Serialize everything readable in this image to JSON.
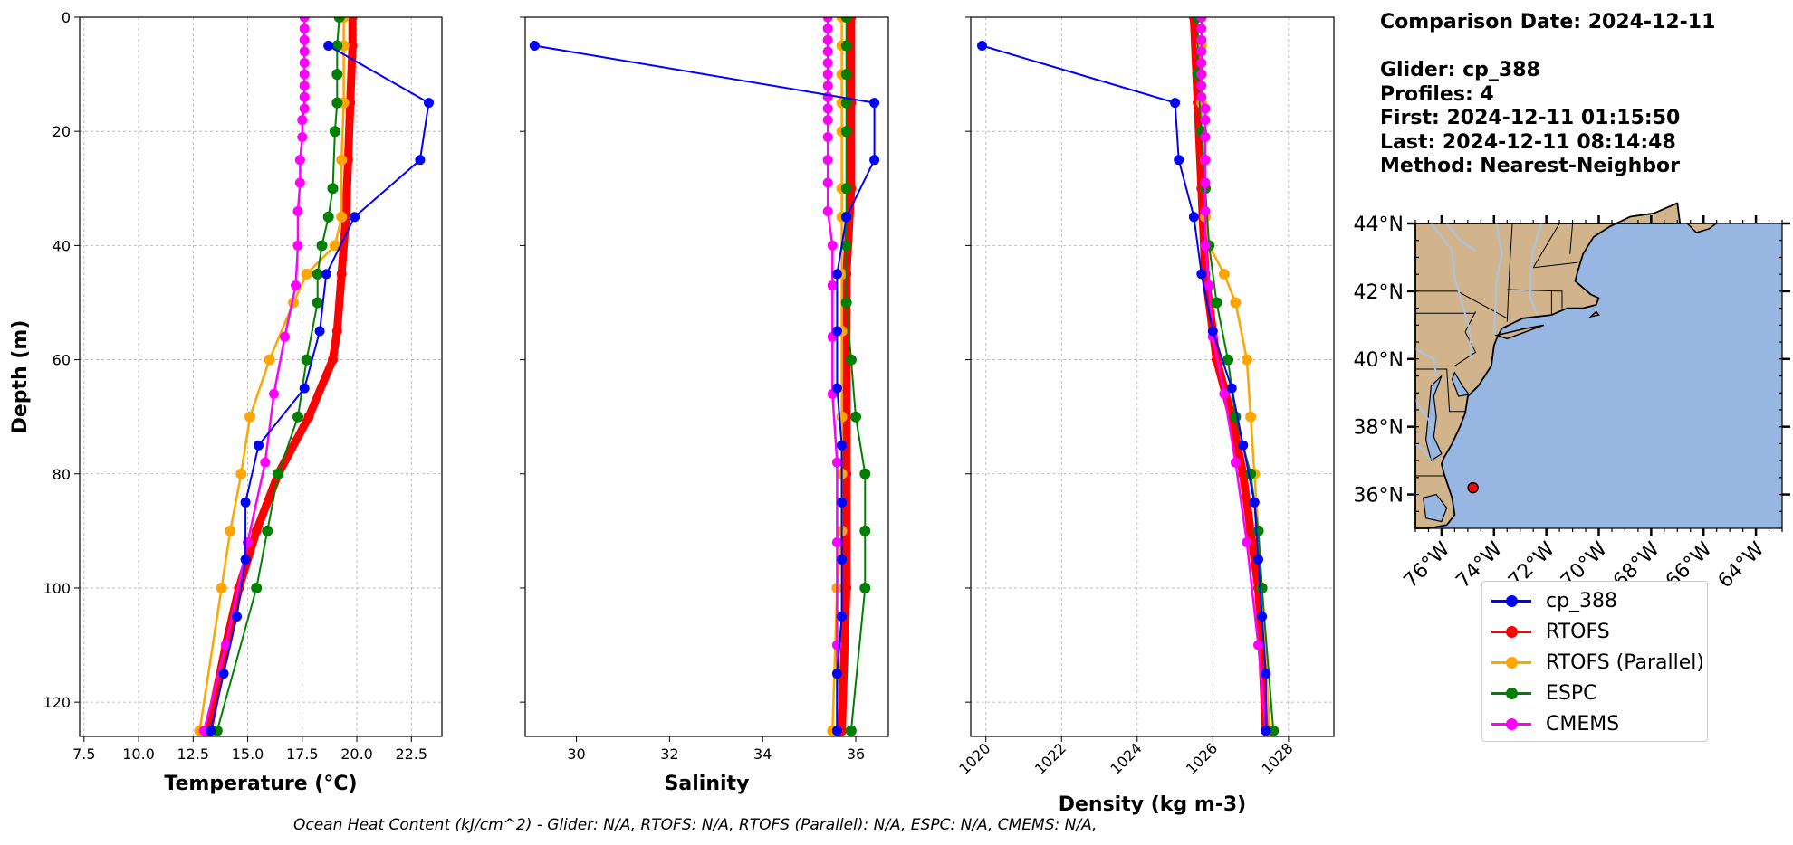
{
  "chart_data": [
    {
      "type": "line",
      "xlabel": "Temperature (°C)",
      "ylabel": "Depth (m)",
      "xlim": [
        7.3,
        23.9
      ],
      "ylim": [
        126,
        0
      ],
      "xticks": [
        7.5,
        10.0,
        12.5,
        15.0,
        17.5,
        20.0,
        22.5
      ],
      "yticks": [
        0,
        20,
        40,
        60,
        80,
        100,
        120
      ],
      "grid": true,
      "series": [
        {
          "name": "cp_388",
          "color": "#0000ff",
          "depth": [
            5,
            15,
            25,
            35,
            45,
            55,
            65,
            75,
            85,
            95,
            105,
            115,
            125
          ],
          "values": [
            18.7,
            23.3,
            22.9,
            19.9,
            18.6,
            18.3,
            17.6,
            15.5,
            14.9,
            14.9,
            14.5,
            13.9,
            13.3
          ]
        },
        {
          "name": "RTOFS",
          "color": "#ff0000",
          "depth": [
            0,
            5,
            15,
            25,
            35,
            45,
            55,
            60,
            70,
            80,
            90,
            100,
            110,
            125
          ],
          "values": [
            19.8,
            19.8,
            19.7,
            19.6,
            19.5,
            19.3,
            19.1,
            18.9,
            17.8,
            16.4,
            15.4,
            14.6,
            14.0,
            13.2
          ]
        },
        {
          "name": "RTOFS (Parallel)",
          "color": "#ffa500",
          "depth": [
            0,
            5,
            15,
            25,
            35,
            40,
            45,
            50,
            60,
            70,
            80,
            90,
            100,
            125
          ],
          "values": [
            19.4,
            19.4,
            19.4,
            19.3,
            19.3,
            19.0,
            17.7,
            17.1,
            16.0,
            15.1,
            14.7,
            14.2,
            13.8,
            12.8
          ]
        },
        {
          "name": "ESPC",
          "color": "#008000",
          "depth": [
            0,
            5,
            10,
            15,
            20,
            30,
            35,
            40,
            45,
            50,
            60,
            70,
            80,
            90,
            100,
            125
          ],
          "values": [
            19.2,
            19.1,
            19.1,
            19.1,
            19.0,
            18.9,
            18.7,
            18.4,
            18.2,
            18.2,
            17.7,
            17.3,
            16.4,
            15.9,
            15.4,
            13.6
          ]
        },
        {
          "name": "CMEMS",
          "color": "#ff00ff",
          "depth": [
            0,
            2,
            4,
            6,
            8,
            10,
            12,
            14,
            16,
            18,
            21,
            25,
            29,
            34,
            40,
            47,
            56,
            66,
            78,
            92,
            110,
            125
          ],
          "values": [
            17.6,
            17.6,
            17.6,
            17.6,
            17.6,
            17.6,
            17.6,
            17.6,
            17.6,
            17.5,
            17.5,
            17.4,
            17.4,
            17.3,
            17.3,
            17.2,
            16.7,
            16.2,
            15.8,
            15.0,
            14.0,
            13.0
          ]
        }
      ]
    },
    {
      "type": "line",
      "xlabel": "Salinity",
      "xlim": [
        28.9,
        36.7
      ],
      "ylim": [
        126,
        0
      ],
      "xticks": [
        30,
        32,
        34,
        36
      ],
      "yticks": [
        0,
        20,
        40,
        60,
        80,
        100,
        120
      ],
      "grid": false,
      "series": [
        {
          "name": "cp_388",
          "color": "#0000ff",
          "depth": [
            5,
            15,
            25,
            35,
            45,
            55,
            65,
            75,
            85,
            95,
            105,
            115,
            125
          ],
          "values": [
            29.1,
            36.4,
            36.4,
            35.8,
            35.6,
            35.6,
            35.6,
            35.7,
            35.7,
            35.7,
            35.7,
            35.6,
            35.6
          ]
        },
        {
          "name": "RTOFS",
          "color": "#ff0000",
          "depth": [
            0,
            15,
            30,
            45,
            60,
            80,
            100,
            125
          ],
          "values": [
            35.9,
            35.9,
            35.9,
            35.8,
            35.8,
            35.8,
            35.8,
            35.7
          ]
        },
        {
          "name": "RTOFS (Parallel)",
          "color": "#ffa500",
          "depth": [
            0,
            5,
            10,
            15,
            20,
            30,
            35,
            45,
            55,
            70,
            80,
            90,
            100,
            125
          ],
          "values": [
            35.7,
            35.7,
            35.7,
            35.7,
            35.7,
            35.7,
            35.7,
            35.7,
            35.7,
            35.7,
            35.7,
            35.7,
            35.6,
            35.5
          ]
        },
        {
          "name": "ESPC",
          "color": "#008000",
          "depth": [
            0,
            5,
            10,
            15,
            20,
            30,
            35,
            40,
            50,
            60,
            70,
            80,
            90,
            100,
            125
          ],
          "values": [
            35.8,
            35.8,
            35.8,
            35.8,
            35.8,
            35.8,
            35.8,
            35.8,
            35.8,
            35.9,
            36.0,
            36.2,
            36.2,
            36.2,
            35.9
          ]
        },
        {
          "name": "CMEMS",
          "color": "#ff00ff",
          "depth": [
            0,
            2,
            4,
            6,
            8,
            10,
            12,
            14,
            16,
            18,
            21,
            25,
            29,
            34,
            40,
            47,
            56,
            66,
            78,
            92,
            110,
            125
          ],
          "values": [
            35.4,
            35.4,
            35.4,
            35.4,
            35.4,
            35.4,
            35.4,
            35.4,
            35.4,
            35.4,
            35.4,
            35.4,
            35.4,
            35.4,
            35.5,
            35.5,
            35.5,
            35.5,
            35.6,
            35.6,
            35.6,
            35.6
          ]
        }
      ]
    },
    {
      "type": "line",
      "xlabel": "Density (kg m-3)",
      "xlim": [
        1019.6,
        1029.2
      ],
      "ylim": [
        126,
        0
      ],
      "xticks": [
        1020,
        1022,
        1024,
        1026,
        1028
      ],
      "yticks": [
        0,
        20,
        40,
        60,
        80,
        100,
        120
      ],
      "grid": true,
      "series": [
        {
          "name": "cp_388",
          "color": "#0000ff",
          "depth": [
            5,
            15,
            25,
            35,
            45,
            55,
            65,
            75,
            85,
            95,
            105,
            115,
            125
          ],
          "values": [
            1019.9,
            1025.0,
            1025.1,
            1025.5,
            1025.7,
            1026.0,
            1026.5,
            1026.8,
            1027.1,
            1027.2,
            1027.3,
            1027.4,
            1027.4
          ]
        },
        {
          "name": "RTOFS",
          "color": "#ff0000",
          "depth": [
            0,
            15,
            30,
            45,
            60,
            70,
            80,
            90,
            100,
            110,
            125
          ],
          "values": [
            1025.5,
            1025.6,
            1025.7,
            1025.8,
            1026.1,
            1026.5,
            1026.8,
            1027.0,
            1027.2,
            1027.3,
            1027.4
          ]
        },
        {
          "name": "RTOFS (Parallel)",
          "color": "#ffa500",
          "depth": [
            0,
            5,
            10,
            15,
            20,
            25,
            30,
            35,
            40,
            45,
            50,
            60,
            70,
            80,
            90,
            100,
            125
          ],
          "values": [
            1025.7,
            1025.7,
            1025.7,
            1025.7,
            1025.7,
            1025.8,
            1025.8,
            1025.8,
            1025.9,
            1026.3,
            1026.6,
            1026.9,
            1027.0,
            1027.1,
            1027.2,
            1027.3,
            1027.5
          ]
        },
        {
          "name": "ESPC",
          "color": "#008000",
          "depth": [
            0,
            10,
            20,
            30,
            40,
            50,
            60,
            70,
            80,
            90,
            100,
            125
          ],
          "values": [
            1025.6,
            1025.6,
            1025.7,
            1025.8,
            1025.9,
            1026.1,
            1026.4,
            1026.6,
            1027.0,
            1027.2,
            1027.3,
            1027.6
          ]
        },
        {
          "name": "CMEMS",
          "color": "#ff00ff",
          "depth": [
            0,
            2,
            4,
            6,
            8,
            10,
            12,
            14,
            16,
            18,
            21,
            25,
            29,
            34,
            40,
            47,
            56,
            66,
            78,
            92,
            110,
            125
          ],
          "values": [
            1025.7,
            1025.7,
            1025.7,
            1025.7,
            1025.7,
            1025.7,
            1025.7,
            1025.7,
            1025.8,
            1025.8,
            1025.8,
            1025.8,
            1025.8,
            1025.8,
            1025.8,
            1025.9,
            1026.0,
            1026.3,
            1026.6,
            1026.9,
            1027.2,
            1027.4
          ]
        }
      ]
    }
  ],
  "info": {
    "comparison_date": "Comparison Date: 2024-12-11",
    "glider": "Glider: cp_388",
    "profiles": "Profiles: 4",
    "first": "First: 2024-12-11 01:15:50",
    "last": "Last: 2024-12-11 08:14:48",
    "method": "Method: Nearest-Neighbor"
  },
  "map": {
    "lat_labels": [
      "44°N",
      "42°N",
      "40°N",
      "38°N",
      "36°N"
    ],
    "lon_labels": [
      "76°W",
      "74°W",
      "72°W",
      "70°W",
      "68°W",
      "66°W",
      "64°W"
    ],
    "lat_range": [
      35,
      44
    ],
    "lon_range": [
      -77,
      -63
    ],
    "glider_position": {
      "lat": 36.2,
      "lon": -74.8
    },
    "land_color": "#d2b48c",
    "ocean_color": "#97b6e1",
    "marker_color": "#ff0000"
  },
  "legend": [
    {
      "label": "cp_388",
      "color": "#0000ff"
    },
    {
      "label": "RTOFS",
      "color": "#ff0000"
    },
    {
      "label": "RTOFS (Parallel)",
      "color": "#ffa500"
    },
    {
      "label": "ESPC",
      "color": "#008000"
    },
    {
      "label": "CMEMS",
      "color": "#ff00ff"
    }
  ],
  "footer": "Ocean Heat Content (kJ/cm^2) - Glider: N/A,  RTOFS: N/A,  RTOFS (Parallel): N/A,  ESPC: N/A,  CMEMS: N/A,"
}
